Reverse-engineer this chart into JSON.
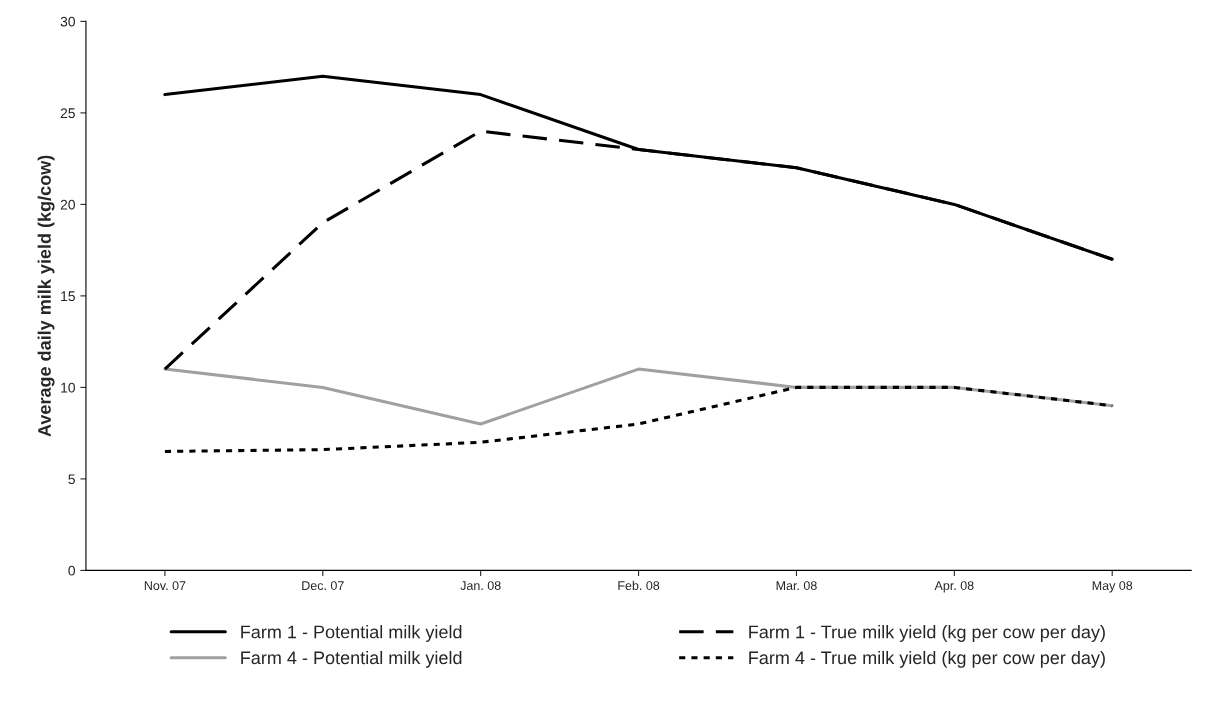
{
  "chart_data": {
    "type": "line",
    "ylabel": "Average daily milk yield (kg/cow)",
    "categories": [
      "Nov. 07",
      "Dec. 07",
      "Jan. 08",
      "Feb. 08",
      "Mar. 08",
      "Apr. 08",
      "May 08"
    ],
    "series": [
      {
        "name": "Farm 1 - Potential milk yield",
        "color": "#000000",
        "line_style": "solid",
        "values": [
          26,
          27,
          26,
          23,
          22,
          20,
          17
        ]
      },
      {
        "name": "Farm 4 - Potential milk yield",
        "color": "#a0a0a0",
        "line_style": "solid",
        "values": [
          11,
          10,
          8,
          11,
          10,
          10,
          9
        ]
      },
      {
        "name": "Farm 1 - True milk yield (kg per cow per day)",
        "color": "#000000",
        "line_style": "dashed",
        "values": [
          11,
          19,
          24,
          23,
          22,
          20,
          17
        ]
      },
      {
        "name": "Farm 4 - True milk yield (kg per cow per day)",
        "color": "#000000",
        "line_style": "dotted",
        "values": [
          6.5,
          6.6,
          7,
          8,
          10,
          10,
          9
        ]
      }
    ],
    "ylim": [
      0,
      30
    ],
    "yticks": [
      0,
      5,
      10,
      15,
      20,
      25,
      30
    ],
    "grid": false,
    "legend": "bottom",
    "marker": "none"
  }
}
